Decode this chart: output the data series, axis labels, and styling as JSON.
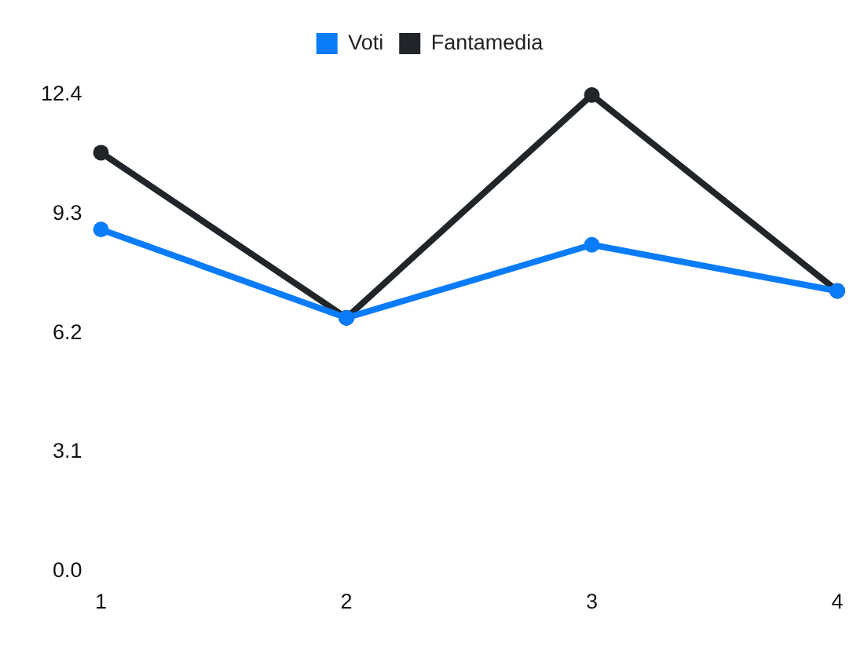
{
  "chart_data": {
    "type": "line",
    "categories": [
      "1",
      "2",
      "3",
      "4"
    ],
    "series": [
      {
        "name": "Voti",
        "color": "#0a7cfa",
        "values": [
          8.9,
          6.6,
          8.5,
          7.3
        ]
      },
      {
        "name": "Fantamedia",
        "color": "#212529",
        "values": [
          10.9,
          6.6,
          12.4,
          7.3
        ]
      }
    ],
    "ylim": [
      0,
      12.4
    ],
    "yticks": [
      {
        "value": 0,
        "label": "0.0"
      },
      3.1,
      6.2,
      9.3,
      12.4
    ],
    "legend": "top",
    "grid": false,
    "marker": "circle",
    "line_style": "solid"
  }
}
